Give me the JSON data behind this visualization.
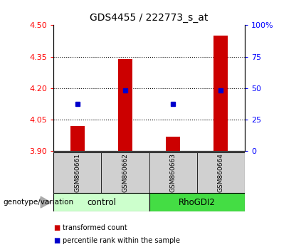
{
  "title": "GDS4455 / 222773_s_at",
  "samples": [
    "GSM860661",
    "GSM860662",
    "GSM860663",
    "GSM860664"
  ],
  "bar_values": [
    4.02,
    4.34,
    3.97,
    4.45
  ],
  "bar_bottom": 3.9,
  "blue_values": [
    4.125,
    4.19,
    4.125,
    4.19
  ],
  "ylim_left": [
    3.9,
    4.5
  ],
  "ylim_right": [
    0,
    100
  ],
  "yticks_left": [
    3.9,
    4.05,
    4.2,
    4.35,
    4.5
  ],
  "yticks_right": [
    0,
    25,
    50,
    75,
    100
  ],
  "ytick_labels_right": [
    "0",
    "25",
    "50",
    "75",
    "100%"
  ],
  "groups": [
    {
      "label": "control",
      "samples": [
        0,
        1
      ],
      "color": "#ccffcc"
    },
    {
      "label": "RhoGDI2",
      "samples": [
        2,
        3
      ],
      "color": "#44dd44"
    }
  ],
  "bar_color": "#cc0000",
  "blue_color": "#0000cc",
  "label_box_color": "#d0d0d0",
  "legend_items": [
    {
      "color": "#cc0000",
      "label": "transformed count"
    },
    {
      "color": "#0000cc",
      "label": "percentile rank within the sample"
    }
  ],
  "genotype_label": "genotype/variation",
  "dotted_yticks": [
    4.05,
    4.2,
    4.35
  ],
  "bar_width": 0.3
}
